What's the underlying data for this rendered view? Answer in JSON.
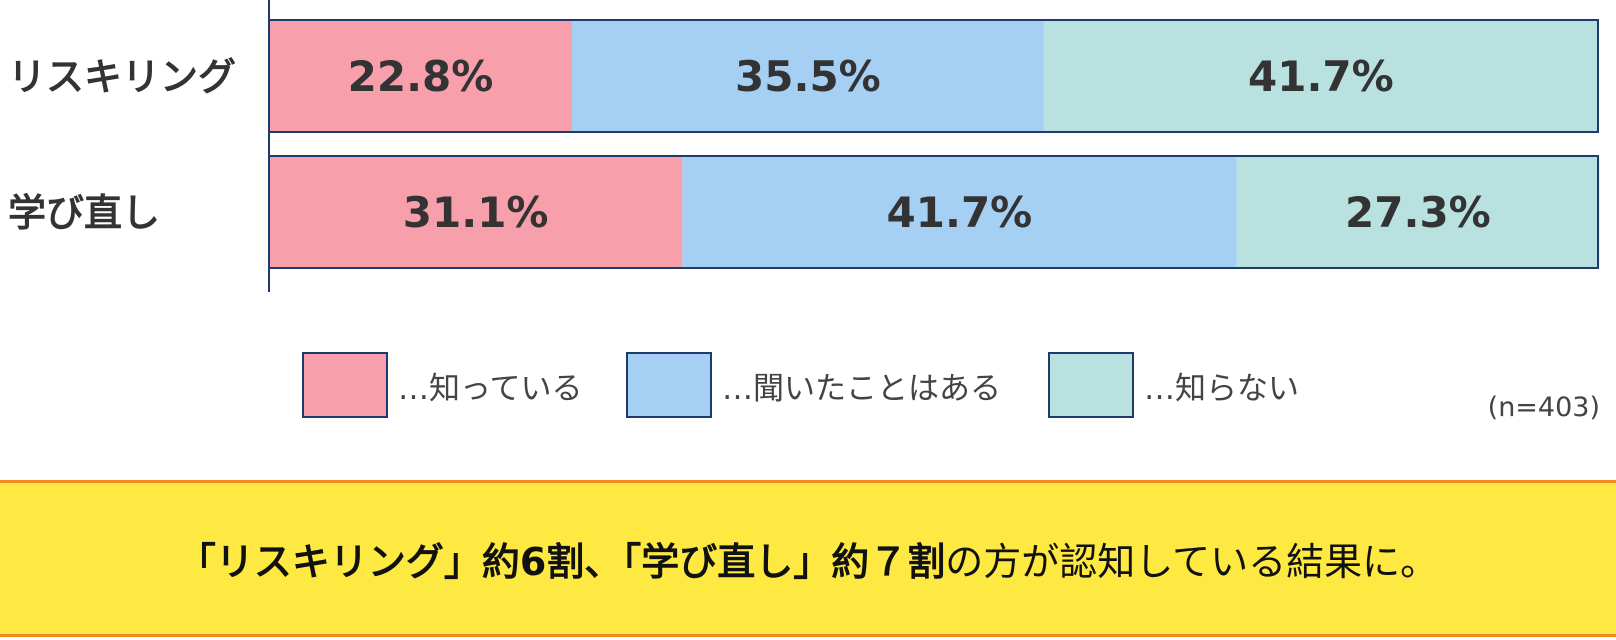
{
  "chart_data": {
    "type": "bar",
    "orientation": "horizontal",
    "stacked": true,
    "categories": [
      "リスキリング",
      "学び直し"
    ],
    "series": [
      {
        "name": "…知っている",
        "color": "#f7a0ac",
        "values": [
          22.8,
          31.1
        ],
        "labels": [
          "22.8%",
          "31.1%"
        ]
      },
      {
        "name": "…聞いたことはある",
        "color": "#a5d0f4",
        "values": [
          35.5,
          41.7
        ],
        "labels": [
          "35.5%",
          "41.7%"
        ]
      },
      {
        "name": "…知らない",
        "color": "#b8e1e0",
        "values": [
          41.7,
          27.3
        ],
        "labels": [
          "41.7%",
          "27.3%"
        ]
      }
    ],
    "xlim": [
      0,
      100
    ],
    "legend_position": "bottom",
    "grid": false,
    "annotation": "(n=403)"
  },
  "banner": {
    "part1": "「リスキリング」約6割、「学び直し」約７割",
    "part2": "の方が認知している結果に。"
  }
}
